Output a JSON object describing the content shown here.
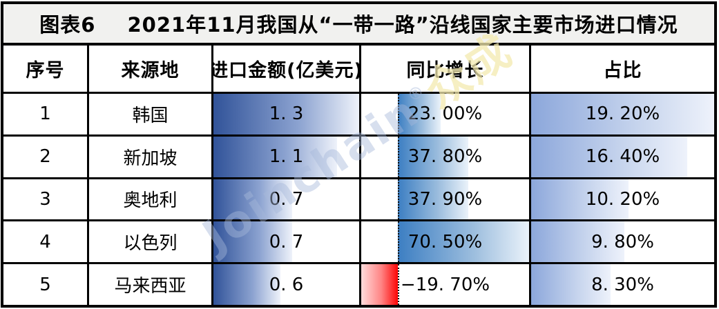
{
  "title": {
    "tag": "图表6",
    "text": "2021年11月我国从“一带一路”沿线国家主要市场进口情况"
  },
  "watermark": {
    "brand": "Joinchain",
    "reg": "®",
    "suffix": "众成"
  },
  "colors": {
    "amount_bar_start": "#315399",
    "yoy_bar_start": "#3c7ec2",
    "yoy_neg_bar_end": "#fe0505",
    "share_bar_start": "#8ca7db",
    "title_band_bg": "#f1f1ef",
    "border": "#000000"
  },
  "chart_data": {
    "type": "table",
    "title": "图表6 2021年11月我国从“一带一路”沿线国家主要市场进口情况",
    "columns": [
      "序号",
      "来源地",
      "进口金额(亿美元)",
      "同比增长",
      "占比"
    ],
    "databar_note": "blue gradient databars scaled to column max; 同比增长 has dotted zero axis, negative value drawn as red bar to the left of axis",
    "rows": [
      {
        "no": "1",
        "origin": "韩国",
        "amount": 1.3,
        "amount_label": "1. 3",
        "yoy": 23.0,
        "yoy_label": "23. 00%",
        "share": 19.2,
        "share_label": "19. 20%"
      },
      {
        "no": "2",
        "origin": "新加坡",
        "amount": 1.1,
        "amount_label": "1. 1",
        "yoy": 37.8,
        "yoy_label": "37. 80%",
        "share": 16.4,
        "share_label": "16. 40%"
      },
      {
        "no": "3",
        "origin": "奥地利",
        "amount": 0.7,
        "amount_label": "0. 7",
        "yoy": 37.9,
        "yoy_label": "37. 90%",
        "share": 10.2,
        "share_label": "10. 20%"
      },
      {
        "no": "4",
        "origin": "以色列",
        "amount": 0.7,
        "amount_label": "0. 7",
        "yoy": 70.5,
        "yoy_label": "70. 50%",
        "share": 9.8,
        "share_label": "9. 80%"
      },
      {
        "no": "5",
        "origin": "马来西亚",
        "amount": 0.6,
        "amount_label": "0. 6",
        "yoy": -19.7,
        "yoy_label": "−19. 70%",
        "share": 8.3,
        "share_label": "8. 30%"
      }
    ]
  }
}
